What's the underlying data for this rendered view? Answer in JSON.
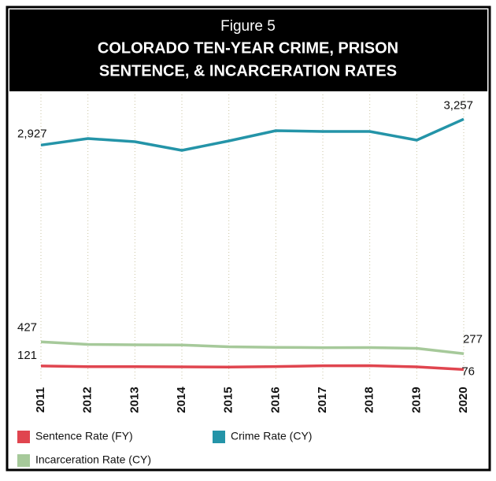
{
  "chart_data": {
    "type": "line",
    "figure_label": "Figure 5",
    "title": [
      "COLORADO TEN-YEAR CRIME, PRISON",
      "SENTENCE, & INCARCERATION RATES"
    ],
    "categories": [
      "2011",
      "2012",
      "2013",
      "2014",
      "2015",
      "2016",
      "2017",
      "2018",
      "2019",
      "2020"
    ],
    "ylim": [
      0,
      3500
    ],
    "grid": true,
    "series": [
      {
        "name": "Sentence Rate (FY)",
        "color": "#e0454f",
        "values": [
          121,
          112,
          112,
          110,
          107,
          114,
          124,
          125,
          110,
          76
        ]
      },
      {
        "name": "Crime Rate (CY)",
        "color": "#2494a8",
        "values": [
          2927,
          3010,
          2970,
          2860,
          2980,
          3110,
          3100,
          3100,
          2990,
          3257
        ],
        "value_labels": [
          "2,927",
          null,
          null,
          null,
          null,
          null,
          null,
          null,
          null,
          "3,257"
        ]
      },
      {
        "name": "Incarceration Rate (CY)",
        "color": "#a6c99a",
        "values": [
          427,
          395,
          390,
          388,
          365,
          358,
          354,
          355,
          345,
          277
        ]
      }
    ]
  }
}
